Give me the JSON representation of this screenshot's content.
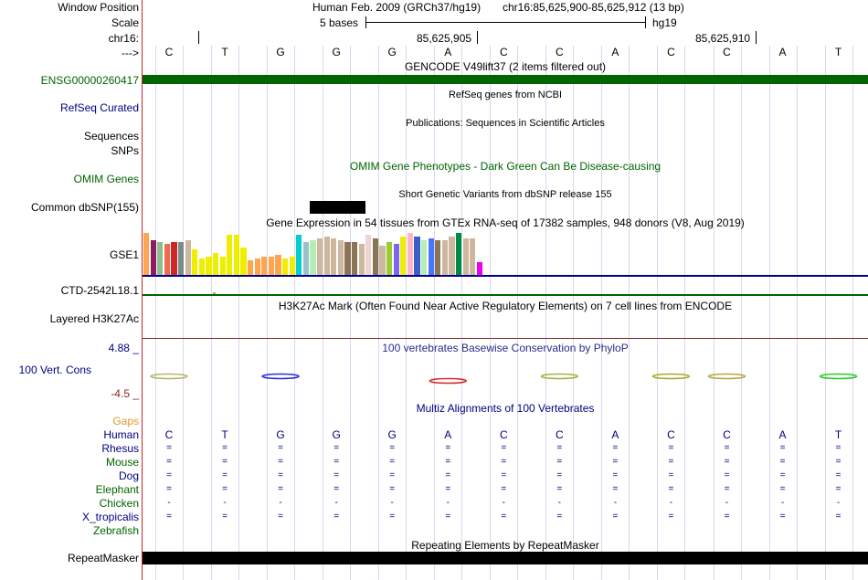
{
  "labels": {
    "window_position": "Window Position",
    "scale": "Scale",
    "chrom": "chr16:",
    "arrow": "--->",
    "gene_id": "ENSG00000260417",
    "refseq": "RefSeq Curated",
    "sequences": "Sequences",
    "snps": "SNPs",
    "omim": "OMIM Genes",
    "dbsnp": "Common dbSNP(155)",
    "gse1": "GSE1",
    "ctd": "CTD-2542L18.1",
    "h3k27ac": "Layered H3K27Ac",
    "cons_max": "4.88 _",
    "cons": "100 Vert. Cons",
    "cons_min": "-4.5 _",
    "gaps": "Gaps",
    "repeatmasker": "RepeatMasker"
  },
  "header": {
    "assembly": "Human Feb. 2009 (GRCh37/hg19)",
    "position": "chr16:85,625,900-85,625,912 (13 bp)",
    "scale_text": "5 bases",
    "scale_db": "hg19",
    "coord1": "85,625,905",
    "coord2": "85,625,910"
  },
  "sequence": [
    "C",
    "T",
    "G",
    "G",
    "G",
    "A",
    "C",
    "C",
    "A",
    "C",
    "C",
    "A",
    "T"
  ],
  "track_titles": {
    "gencode": "GENCODE V49lift37 (2 items filtered out)",
    "refseq": "RefSeq genes from NCBI",
    "publications": "Publications: Sequences in Scientific Articles",
    "omim": "OMIM Gene Phenotypes - Dark Green Can Be Disease-causing",
    "dbsnp": "Short Genetic Variants from dbSNP release 155",
    "gtex": "Gene Expression in 54 tissues from GTEx RNA-seq of 17382 samples, 948 donors (V8, Aug 2019)",
    "h3k27ac": "H3K27Ac Mark (Often Found Near Active Regulatory Elements) on 7 cell lines from ENCODE",
    "phylop": "100 vertebrates Basewise Conservation by PhyloP",
    "multiz": "Multiz Alignments of 100 Vertebrates",
    "repeat": "Repeating Elements by RepeatMasker"
  },
  "species": [
    {
      "name": "Human",
      "color": "#000080",
      "row": [
        "C",
        "T",
        "G",
        "G",
        "G",
        "A",
        "C",
        "C",
        "A",
        "C",
        "C",
        "A",
        "T"
      ]
    },
    {
      "name": "Rhesus",
      "color": "#000080",
      "row": [
        "=",
        "=",
        "=",
        "=",
        "=",
        "=",
        "=",
        "=",
        "=",
        "=",
        "=",
        "=",
        "="
      ]
    },
    {
      "name": "Mouse",
      "color": "#006400",
      "row": [
        "=",
        "=",
        "=",
        "=",
        "=",
        "=",
        "=",
        "=",
        "=",
        "=",
        "=",
        "=",
        "="
      ]
    },
    {
      "name": "Dog",
      "color": "#000080",
      "row": [
        "=",
        "=",
        "=",
        "=",
        "=",
        "=",
        "=",
        "=",
        "=",
        "=",
        "=",
        "=",
        "="
      ]
    },
    {
      "name": "Elephant",
      "color": "#006400",
      "row": [
        "=",
        "=",
        "=",
        "=",
        "=",
        "=",
        "=",
        "=",
        "=",
        "=",
        "=",
        "=",
        "="
      ]
    },
    {
      "name": "Chicken",
      "color": "#006400",
      "row": [
        "-",
        "-",
        "-",
        "-",
        "-",
        "-",
        "-",
        "-",
        "-",
        "-",
        "-",
        "-",
        "-"
      ]
    },
    {
      "name": "X_tropicalis",
      "color": "#000080",
      "row": [
        "=",
        "=",
        "=",
        "=",
        "=",
        "=",
        "=",
        "=",
        "=",
        "=",
        "=",
        "=",
        "="
      ]
    },
    {
      "name": "Zebrafish",
      "color": "#006400",
      "row": [
        "",
        "",
        "",
        "",
        "",
        "",
        "",
        "",
        "",
        "",
        "",
        "",
        ""
      ]
    }
  ],
  "gtex_heights": [
    46,
    38,
    36,
    34,
    36,
    36,
    38,
    28,
    18,
    20,
    24,
    20,
    44,
    44,
    30,
    16,
    18,
    20,
    20,
    22,
    18,
    20,
    44,
    36,
    38,
    40,
    42,
    40,
    38,
    36,
    36,
    34,
    44,
    40,
    32,
    36,
    34,
    42,
    46,
    42,
    38,
    40,
    38,
    38,
    42,
    46,
    40,
    40,
    14
  ],
  "gtex_colors": [
    "#FFA54F",
    "#8B1C62",
    "#8FBC8F",
    "#EE6A50",
    "#CD2626",
    "#7A8B8B",
    "#CDB79E",
    "#EEEE00",
    "#EEEE00",
    "#EEEE00",
    "#EEEE00",
    "#EEEE00",
    "#EEEE00",
    "#EEEE00",
    "#EEEE00",
    "#FFA54F",
    "#FFA54F",
    "#FFA54F",
    "#FFA54F",
    "#FFA54F",
    "#EEEE00",
    "#EEEE00",
    "#00CED1",
    "#9AC0CD",
    "#B4EEB4",
    "#CDB79E",
    "#CDB79E",
    "#CDB79E",
    "#CDB79E",
    "#8B7355",
    "#8B7355",
    "#CDB79E",
    "#EED5D2",
    "#8B7355",
    "#CDB79E",
    "#9ACD32",
    "#7A67EE",
    "#EEEE00",
    "#FFB6C1",
    "#3A5FCD",
    "#B4EEB4",
    "#4876FF",
    "#8B7355",
    "#CDB79E",
    "#CDB79E",
    "#008B45",
    "#CDB79E",
    "#CDB79E",
    "#EE00EE"
  ],
  "phylop_marks": [
    {
      "pos": 0,
      "color": "#b5b56a"
    },
    {
      "pos": 2,
      "color": "#2b2bd6"
    },
    {
      "pos": 5,
      "color": "#d62b2b"
    },
    {
      "pos": 7,
      "color": "#9ab53a"
    },
    {
      "pos": 9,
      "color": "#a8a830"
    },
    {
      "pos": 10,
      "color": "#b8a440"
    },
    {
      "pos": 12,
      "color": "#22cc22"
    }
  ],
  "colors": {
    "gencode_bar": "#006400",
    "navy": "#000080",
    "dark_green": "#006400",
    "gaps_orange": "#e09a2a",
    "divider_red": "#cc2222"
  }
}
